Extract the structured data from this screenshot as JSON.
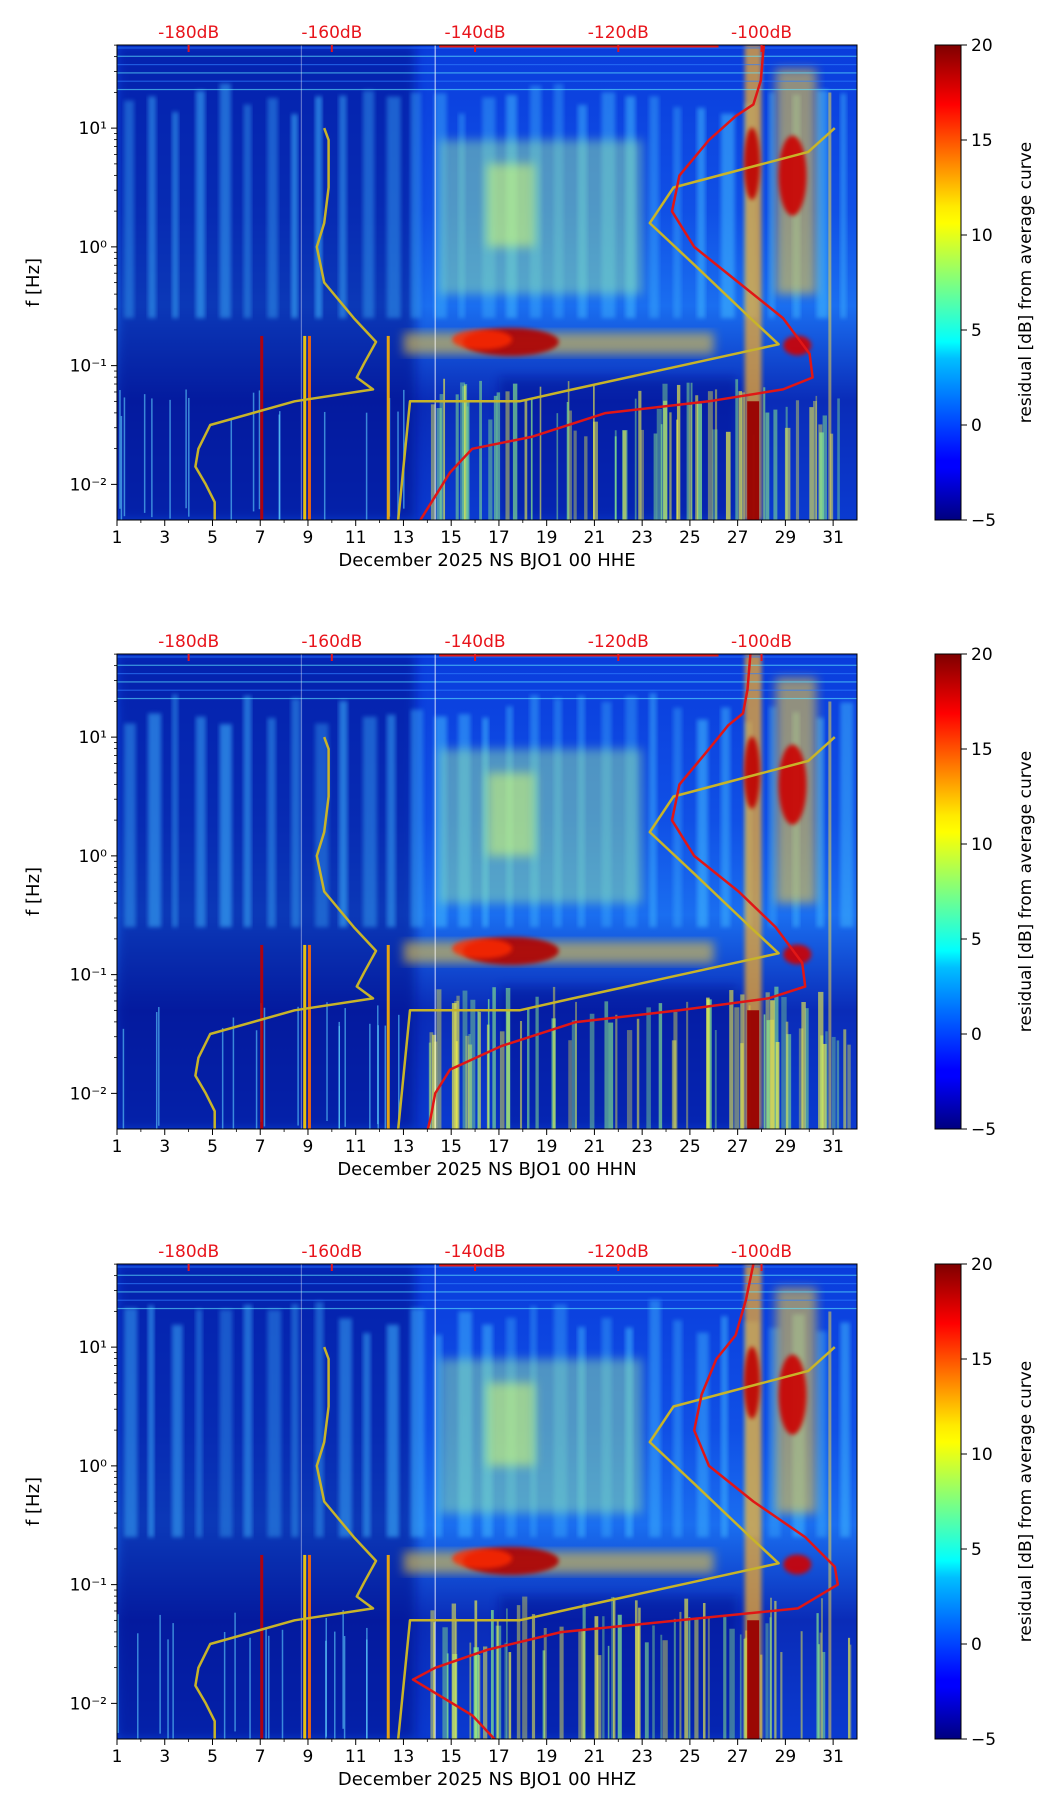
{
  "chart_data": [
    {
      "type": "heatmap",
      "xlabel": "December 2025 NS BJO1 00 HHE",
      "ylabel": "f [Hz]",
      "x_ticks": [
        "1",
        "3",
        "5",
        "7",
        "9",
        "11",
        "13",
        "15",
        "17",
        "19",
        "21",
        "23",
        "25",
        "27",
        "29",
        "31"
      ],
      "y_ticks": [
        "10⁻²",
        "10⁻¹",
        "10⁰",
        "10¹"
      ],
      "db_ticks": [
        "-180dB",
        "-160dB",
        "-140dB",
        "-120dB",
        "-100dB"
      ],
      "colorbar": {
        "label": "residual [dB] from average curve",
        "ticks": [
          "20",
          "15",
          "10",
          "5",
          "0",
          "−5"
        ],
        "range": [
          -5,
          20
        ]
      },
      "xlim": [
        1,
        32
      ],
      "ylim_log10": [
        -2.3,
        1.7
      ],
      "red_curve": [
        [
          43.7,
          1.7
        ],
        [
          43.5,
          1.4
        ],
        [
          43,
          1.2
        ],
        [
          41.8,
          1.1
        ],
        [
          40,
          0.9
        ],
        [
          38,
          0.6
        ],
        [
          37.5,
          0.3
        ],
        [
          39,
          0.0
        ],
        [
          42,
          -0.3
        ],
        [
          45,
          -0.6
        ],
        [
          46.8,
          -0.9
        ],
        [
          47,
          -1.1
        ],
        [
          45,
          -1.2
        ],
        [
          40,
          -1.3
        ],
        [
          33,
          -1.4
        ],
        [
          28,
          -1.6
        ],
        [
          24,
          -1.7
        ],
        [
          22.5,
          -1.9
        ],
        [
          21.5,
          -2.1
        ],
        [
          21,
          -2.2
        ],
        [
          20.5,
          -2.3
        ]
      ],
      "noise_model_high": [
        [
          48.5,
          1.0
        ],
        [
          46.7,
          0.8
        ],
        [
          37.6,
          0.5
        ],
        [
          36,
          0.2
        ],
        [
          39,
          -0.15
        ],
        [
          42.8,
          -0.6
        ],
        [
          44.7,
          -0.82
        ],
        [
          30.8,
          -1.2
        ],
        [
          27.2,
          -1.3
        ],
        [
          19.8,
          -1.3
        ],
        [
          19,
          -2.3
        ]
      ],
      "noise_model_low": [
        [
          14,
          1.0
        ],
        [
          14.3,
          0.9
        ],
        [
          14.3,
          0.5
        ],
        [
          14,
          0.2
        ],
        [
          13.5,
          0.0
        ],
        [
          14,
          -0.3
        ],
        [
          16,
          -0.6
        ],
        [
          17.5,
          -0.8
        ],
        [
          16.7,
          -0.98
        ],
        [
          16.2,
          -1.1
        ],
        [
          17.3,
          -1.2
        ],
        [
          12,
          -1.3
        ],
        [
          6.3,
          -1.5
        ],
        [
          5.5,
          -1.7
        ],
        [
          5.3,
          -1.85
        ],
        [
          6,
          -2.0
        ],
        [
          6.6,
          -2.15
        ],
        [
          6.6,
          -2.3
        ]
      ]
    },
    {
      "type": "heatmap",
      "xlabel": "December 2025 NS BJO1 00 HHN",
      "ylabel": "f [Hz]",
      "x_ticks": [
        "1",
        "3",
        "5",
        "7",
        "9",
        "11",
        "13",
        "15",
        "17",
        "19",
        "21",
        "23",
        "25",
        "27",
        "29",
        "31"
      ],
      "y_ticks": [
        "10⁻²",
        "10⁻¹",
        "10⁰",
        "10¹"
      ],
      "db_ticks": [
        "-180dB",
        "-160dB",
        "-140dB",
        "-120dB",
        "-100dB"
      ],
      "colorbar": {
        "label": "residual [dB] from average curve",
        "ticks": [
          "20",
          "15",
          "10",
          "5",
          "0",
          "−5"
        ],
        "range": [
          -5,
          20
        ]
      },
      "xlim": [
        1,
        32
      ],
      "ylim_log10": [
        -2.3,
        1.7
      ],
      "red_curve": [
        [
          42.8,
          1.7
        ],
        [
          42.6,
          1.4
        ],
        [
          42.3,
          1.2
        ],
        [
          41.3,
          1.1
        ],
        [
          40,
          0.9
        ],
        [
          38,
          0.6
        ],
        [
          37.5,
          0.3
        ],
        [
          39,
          0.0
        ],
        [
          42,
          -0.3
        ],
        [
          44.5,
          -0.6
        ],
        [
          46.3,
          -0.9
        ],
        [
          46.5,
          -1.1
        ],
        [
          44,
          -1.2
        ],
        [
          38,
          -1.3
        ],
        [
          31,
          -1.4
        ],
        [
          26,
          -1.6
        ],
        [
          22.5,
          -1.8
        ],
        [
          21.5,
          -2.0
        ],
        [
          21.2,
          -2.2
        ],
        [
          21,
          -2.3
        ]
      ],
      "noise_model_high": [
        [
          48.5,
          1.0
        ],
        [
          46.7,
          0.8
        ],
        [
          37.6,
          0.5
        ],
        [
          36,
          0.2
        ],
        [
          39,
          -0.15
        ],
        [
          42.8,
          -0.6
        ],
        [
          44.7,
          -0.82
        ],
        [
          30.8,
          -1.2
        ],
        [
          27.2,
          -1.3
        ],
        [
          19.8,
          -1.3
        ],
        [
          19,
          -2.3
        ]
      ],
      "noise_model_low": [
        [
          14,
          1.0
        ],
        [
          14.3,
          0.9
        ],
        [
          14.3,
          0.5
        ],
        [
          14,
          0.2
        ],
        [
          13.5,
          0.0
        ],
        [
          14,
          -0.3
        ],
        [
          16,
          -0.6
        ],
        [
          17.5,
          -0.8
        ],
        [
          16.7,
          -0.98
        ],
        [
          16.2,
          -1.1
        ],
        [
          17.3,
          -1.2
        ],
        [
          12,
          -1.3
        ],
        [
          6.3,
          -1.5
        ],
        [
          5.5,
          -1.7
        ],
        [
          5.3,
          -1.85
        ],
        [
          6,
          -2.0
        ],
        [
          6.6,
          -2.15
        ],
        [
          6.6,
          -2.3
        ]
      ]
    },
    {
      "type": "heatmap",
      "xlabel": "December 2025 NS BJO1 00 HHZ",
      "ylabel": "f [Hz]",
      "x_ticks": [
        "1",
        "3",
        "5",
        "7",
        "9",
        "11",
        "13",
        "15",
        "17",
        "19",
        "21",
        "23",
        "25",
        "27",
        "29",
        "31"
      ],
      "y_ticks": [
        "10⁻²",
        "10⁻¹",
        "10⁰",
        "10¹"
      ],
      "db_ticks": [
        "-180dB",
        "-160dB",
        "-140dB",
        "-120dB",
        "-100dB"
      ],
      "colorbar": {
        "label": "residual [dB] from average curve",
        "ticks": [
          "20",
          "15",
          "10",
          "5",
          "0",
          "−5"
        ],
        "range": [
          -5,
          20
        ]
      },
      "xlim": [
        1,
        32
      ],
      "ylim_log10": [
        -2.3,
        1.7
      ],
      "red_curve": [
        [
          43,
          1.7
        ],
        [
          42.5,
          1.4
        ],
        [
          41.8,
          1.1
        ],
        [
          40.5,
          0.9
        ],
        [
          39.5,
          0.6
        ],
        [
          39,
          0.3
        ],
        [
          40,
          0.0
        ],
        [
          43,
          -0.3
        ],
        [
          46.5,
          -0.6
        ],
        [
          48.5,
          -0.85
        ],
        [
          48.7,
          -1.0
        ],
        [
          46,
          -1.2
        ],
        [
          38,
          -1.3
        ],
        [
          30,
          -1.4
        ],
        [
          25,
          -1.55
        ],
        [
          21.5,
          -1.7
        ],
        [
          20,
          -1.8
        ],
        [
          22,
          -1.95
        ],
        [
          24,
          -2.1
        ],
        [
          25.5,
          -2.3
        ]
      ],
      "noise_model_high": [
        [
          48.5,
          1.0
        ],
        [
          46.7,
          0.8
        ],
        [
          37.6,
          0.5
        ],
        [
          36,
          0.2
        ],
        [
          39,
          -0.15
        ],
        [
          42.8,
          -0.6
        ],
        [
          44.7,
          -0.82
        ],
        [
          30.8,
          -1.2
        ],
        [
          27.2,
          -1.3
        ],
        [
          19.8,
          -1.3
        ],
        [
          19,
          -2.3
        ]
      ],
      "noise_model_low": [
        [
          14,
          1.0
        ],
        [
          14.3,
          0.9
        ],
        [
          14.3,
          0.5
        ],
        [
          14,
          0.2
        ],
        [
          13.5,
          0.0
        ],
        [
          14,
          -0.3
        ],
        [
          16,
          -0.6
        ],
        [
          17.5,
          -0.8
        ],
        [
          16.7,
          -0.98
        ],
        [
          16.2,
          -1.1
        ],
        [
          17.3,
          -1.2
        ],
        [
          12,
          -1.3
        ],
        [
          6.3,
          -1.5
        ],
        [
          5.5,
          -1.7
        ],
        [
          5.3,
          -1.85
        ],
        [
          6,
          -2.0
        ],
        [
          6.6,
          -2.15
        ],
        [
          6.6,
          -2.3
        ]
      ]
    }
  ],
  "colors": {
    "db_label": "#e8141b",
    "red_curve": "#e01616",
    "noise_model": "#c8b429",
    "colormap": "jet"
  }
}
